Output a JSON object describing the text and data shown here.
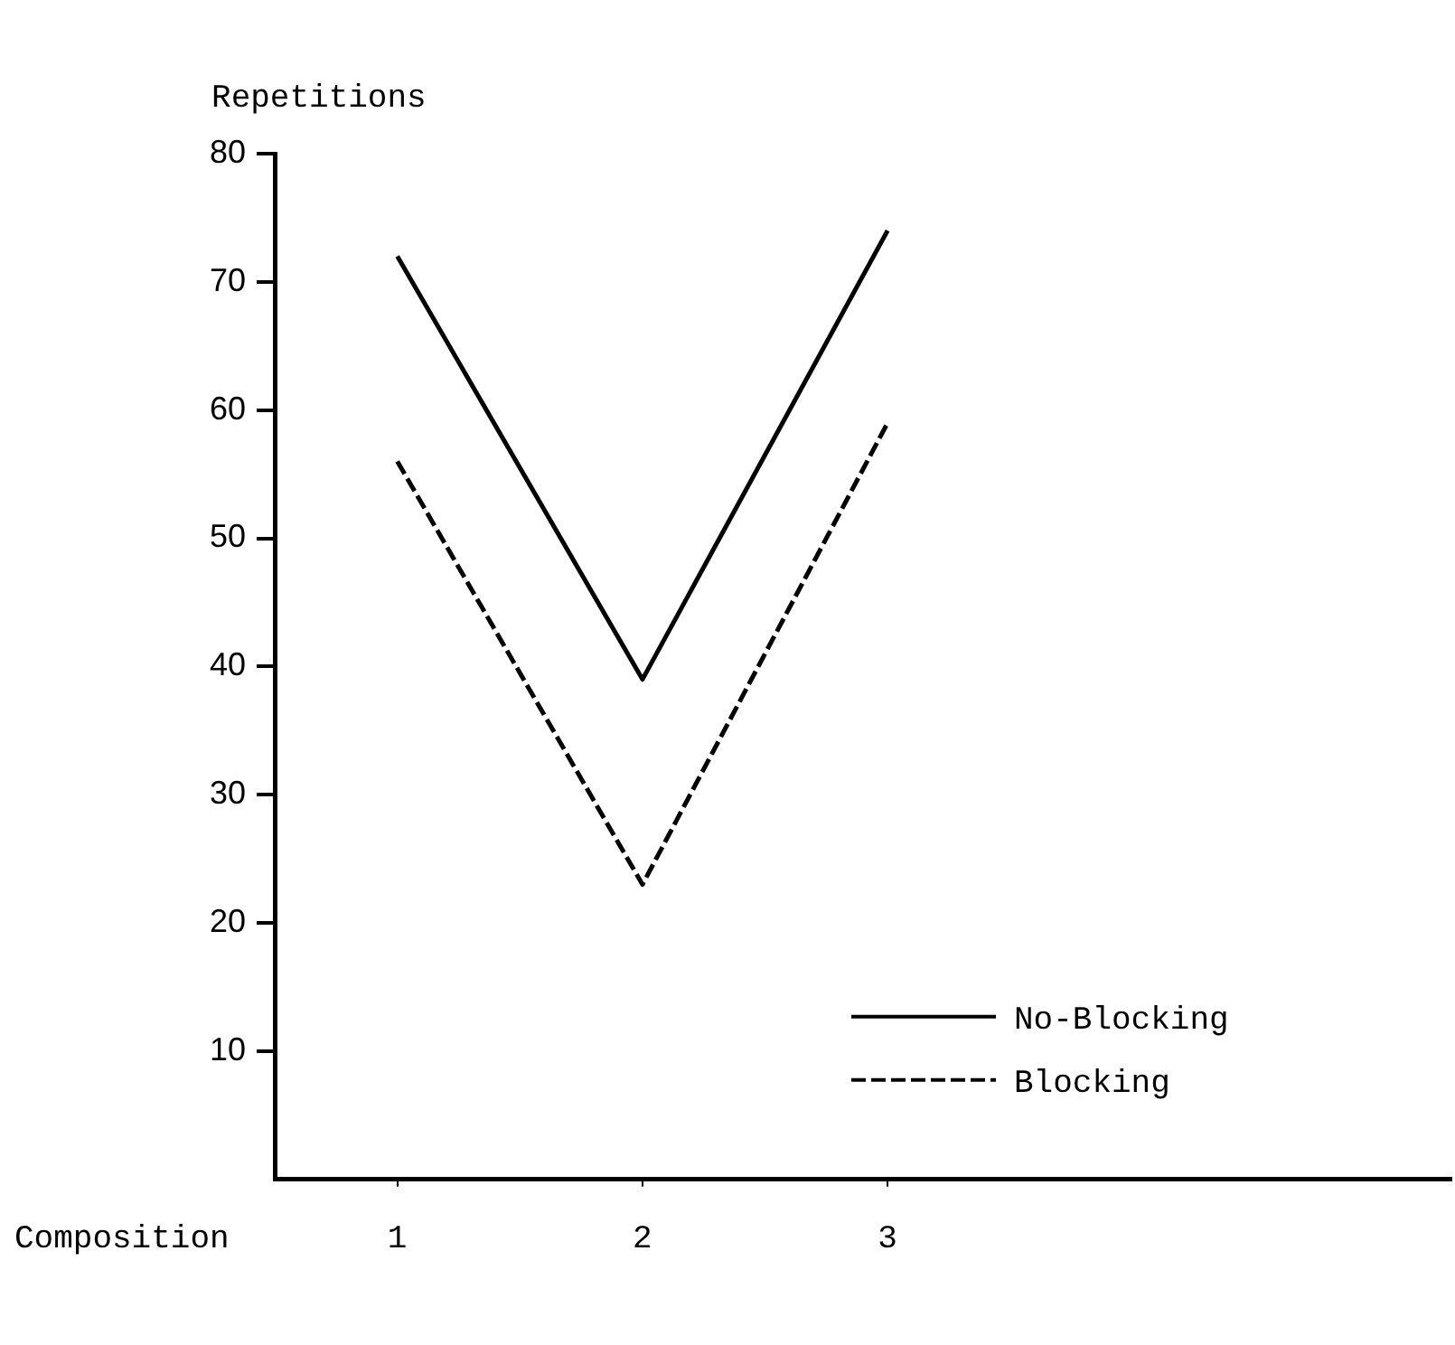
{
  "chart_data": {
    "type": "line",
    "xlabel": "Composition",
    "ylabel": "Repetitions",
    "x": [
      1,
      2,
      3
    ],
    "xlim": [
      0.5,
      5.3
    ],
    "xticks": [
      1,
      2,
      3
    ],
    "ylim": [
      0,
      80
    ],
    "yticks": [
      10,
      20,
      30,
      40,
      50,
      60,
      70,
      80
    ],
    "marker": "none",
    "grid": false,
    "legend": "bottom right",
    "series": [
      {
        "name": "No-Blocking",
        "color": "#000000",
        "line_style": "solid",
        "values": [
          72,
          39,
          74
        ]
      },
      {
        "name": "Blocking",
        "color": "#000000",
        "line_style": "dashed",
        "values": [
          56,
          23,
          59
        ]
      }
    ]
  }
}
